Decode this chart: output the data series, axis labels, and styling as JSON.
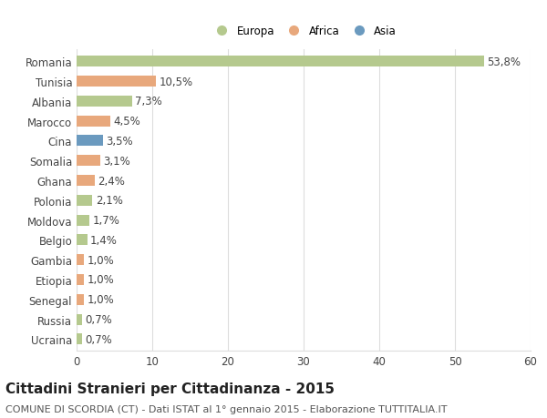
{
  "categories": [
    "Ucraina",
    "Russia",
    "Senegal",
    "Etiopia",
    "Gambia",
    "Belgio",
    "Moldova",
    "Polonia",
    "Ghana",
    "Somalia",
    "Cina",
    "Marocco",
    "Albania",
    "Tunisia",
    "Romania"
  ],
  "values": [
    0.7,
    0.7,
    1.0,
    1.0,
    1.0,
    1.4,
    1.7,
    2.1,
    2.4,
    3.1,
    3.5,
    4.5,
    7.3,
    10.5,
    53.8
  ],
  "labels": [
    "0,7%",
    "0,7%",
    "1,0%",
    "1,0%",
    "1,0%",
    "1,4%",
    "1,7%",
    "2,1%",
    "2,4%",
    "3,1%",
    "3,5%",
    "4,5%",
    "7,3%",
    "10,5%",
    "53,8%"
  ],
  "colors": [
    "#b5c98e",
    "#b5c98e",
    "#e8a87c",
    "#e8a87c",
    "#e8a87c",
    "#b5c98e",
    "#b5c98e",
    "#b5c98e",
    "#e8a87c",
    "#e8a87c",
    "#6b9abf",
    "#e8a87c",
    "#b5c98e",
    "#e8a87c",
    "#b5c98e"
  ],
  "legend_labels": [
    "Europa",
    "Africa",
    "Asia"
  ],
  "legend_colors": [
    "#b5c98e",
    "#e8a87c",
    "#6b9abf"
  ],
  "title": "Cittadini Stranieri per Cittadinanza - 2015",
  "subtitle": "COMUNE DI SCORDIA (CT) - Dati ISTAT al 1° gennaio 2015 - Elaborazione TUTTITALIA.IT",
  "xlim": [
    0,
    60
  ],
  "xticks": [
    0,
    10,
    20,
    30,
    40,
    50,
    60
  ],
  "bar_height": 0.55,
  "background_color": "#ffffff",
  "grid_color": "#dddddd",
  "label_fontsize": 8.5,
  "tick_fontsize": 8.5,
  "title_fontsize": 11,
  "subtitle_fontsize": 8.0
}
